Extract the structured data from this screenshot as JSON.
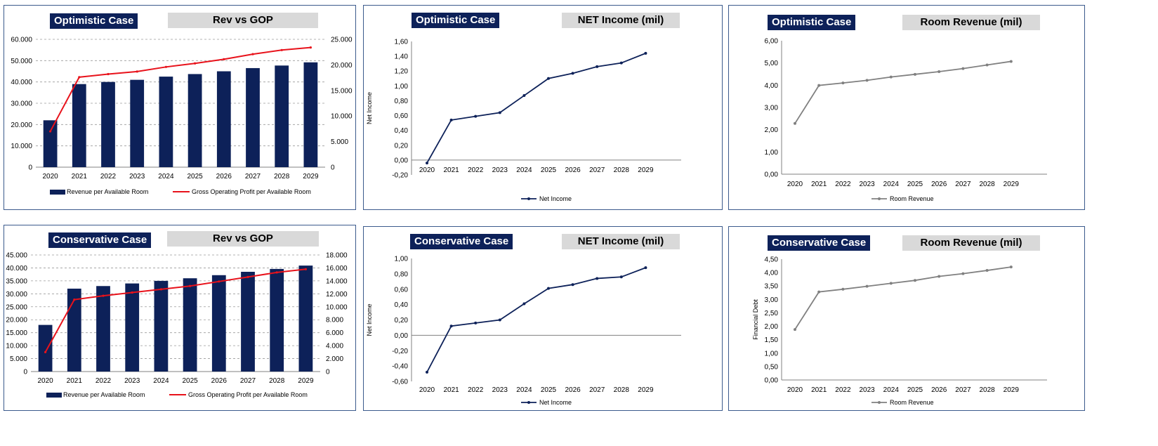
{
  "colors": {
    "navy": "#0d2159",
    "red": "#e8121b",
    "gray_line": "#808080",
    "title_bg": "#d9d9d9"
  },
  "panels": [
    {
      "id": "opt-rev-gop",
      "case_title": "Optimistic Case",
      "chart_title": "Rev vs GOP",
      "chart_data": {
        "type": "bar",
        "categories": [
          "2020",
          "2021",
          "2022",
          "2023",
          "2024",
          "2025",
          "2026",
          "2027",
          "2028",
          "2029"
        ],
        "series": [
          {
            "name": "Revenue per Available Room",
            "kind": "bar",
            "axis": "left",
            "values": [
              22000,
              39000,
              40000,
              41000,
              42500,
              43700,
              45000,
              46500,
              47700,
              49200
            ]
          },
          {
            "name": "Gross Operating Profit per Available Room",
            "kind": "line",
            "axis": "right",
            "values": [
              7000,
              17600,
              18200,
              18700,
              19600,
              20300,
              21100,
              22100,
              22900,
              23400
            ]
          }
        ],
        "left_axis": {
          "ylim": [
            0,
            60000
          ],
          "ticks": [
            "0",
            "10.000",
            "20.000",
            "30.000",
            "40.000",
            "50.000",
            "60.000"
          ]
        },
        "right_axis": {
          "ylim": [
            0,
            25000
          ],
          "ticks": [
            "0",
            "5.000",
            "10.000",
            "15.000",
            "20.000",
            "25.000"
          ]
        },
        "grid": true,
        "legend": "bottom"
      }
    },
    {
      "id": "opt-net-income",
      "case_title": "Optimistic Case",
      "chart_title": "NET Income (mil)",
      "chart_data": {
        "type": "line",
        "categories": [
          "2020",
          "2021",
          "2022",
          "2023",
          "2024",
          "2025",
          "2026",
          "2027",
          "2028",
          "2029"
        ],
        "series": [
          {
            "name": "Net Income",
            "values": [
              -0.04,
              0.54,
              0.59,
              0.64,
              0.87,
              1.1,
              1.17,
              1.26,
              1.31,
              1.44
            ]
          }
        ],
        "ylabel": "Net Income",
        "ylim": [
          -0.2,
          1.6
        ],
        "ticks": [
          "-0,20",
          "0,00",
          "0,20",
          "0,40",
          "0,60",
          "0,80",
          "1,00",
          "1,20",
          "1,40",
          "1,60"
        ],
        "grid": false,
        "legend": "bottom"
      }
    },
    {
      "id": "opt-room-revenue",
      "case_title": "Optimistic Case",
      "chart_title": "Room Revenue (mil)",
      "chart_data": {
        "type": "line",
        "categories": [
          "2020",
          "2021",
          "2022",
          "2023",
          "2024",
          "2025",
          "2026",
          "2027",
          "2028",
          "2029"
        ],
        "series": [
          {
            "name": "Room Revenue",
            "values": [
              2.28,
              3.99,
              4.1,
              4.22,
              4.37,
              4.49,
              4.61,
              4.75,
              4.91,
              5.07
            ]
          }
        ],
        "ylabel": "",
        "ylim": [
          0,
          6
        ],
        "ticks": [
          "0,00",
          "1,00",
          "2,00",
          "3,00",
          "4,00",
          "5,00",
          "6,00"
        ],
        "grid": false,
        "legend": "bottom"
      }
    },
    {
      "id": "cons-rev-gop",
      "case_title": "Conservative Case",
      "chart_title": "Rev vs GOP",
      "chart_data": {
        "type": "bar",
        "categories": [
          "2020",
          "2021",
          "2022",
          "2023",
          "2024",
          "2025",
          "2026",
          "2027",
          "2028",
          "2029"
        ],
        "series": [
          {
            "name": "Revenue per Available Room",
            "kind": "bar",
            "axis": "left",
            "values": [
              18000,
              32000,
              33000,
              34000,
              35000,
              36000,
              37200,
              38500,
              39600,
              40900
            ]
          },
          {
            "name": "Gross Operating Profit per Available Room",
            "kind": "line",
            "axis": "right",
            "values": [
              3000,
              11100,
              11700,
              12200,
              12700,
              13200,
              13900,
              14600,
              15300,
              15800
            ]
          }
        ],
        "left_axis": {
          "ylim": [
            0,
            45000
          ],
          "ticks": [
            "0",
            "5.000",
            "10.000",
            "15.000",
            "20.000",
            "25.000",
            "30.000",
            "35.000",
            "40.000",
            "45.000"
          ]
        },
        "right_axis": {
          "ylim": [
            0,
            18000
          ],
          "ticks": [
            "0",
            "2.000",
            "4.000",
            "6.000",
            "8.000",
            "10.000",
            "12.000",
            "14.000",
            "16.000",
            "18.000"
          ]
        },
        "grid": true,
        "legend": "bottom"
      }
    },
    {
      "id": "cons-net-income",
      "case_title": "Conservative Case",
      "chart_title": "NET Income (mil)",
      "chart_data": {
        "type": "line",
        "categories": [
          "2020",
          "2021",
          "2022",
          "2023",
          "2024",
          "2025",
          "2026",
          "2027",
          "2028",
          "2029"
        ],
        "series": [
          {
            "name": "Net Income",
            "values": [
              -0.48,
              0.12,
              0.16,
              0.2,
              0.41,
              0.61,
              0.66,
              0.74,
              0.76,
              0.88
            ]
          }
        ],
        "ylabel": "Net Income",
        "ylim": [
          -0.6,
          1.0
        ],
        "ticks": [
          "-0,60",
          "-0,40",
          "-0,20",
          "0,00",
          "0,20",
          "0,40",
          "0,60",
          "0,80",
          "1,00"
        ],
        "grid": false,
        "legend": "bottom"
      }
    },
    {
      "id": "cons-room-revenue",
      "case_title": "Conservative Case",
      "chart_title": "Room Revenue (mil)",
      "chart_data": {
        "type": "line",
        "categories": [
          "2020",
          "2021",
          "2022",
          "2023",
          "2024",
          "2025",
          "2026",
          "2027",
          "2028",
          "2029"
        ],
        "series": [
          {
            "name": "Room Revenue",
            "values": [
              1.88,
              3.28,
              3.38,
              3.49,
              3.6,
              3.71,
              3.86,
              3.96,
              4.08,
              4.21
            ]
          }
        ],
        "ylabel": "Financial Debt",
        "ylim": [
          0,
          4.5
        ],
        "ticks": [
          "0,00",
          "0,50",
          "1,00",
          "1,50",
          "2,00",
          "2,50",
          "3,00",
          "3,50",
          "4,00",
          "4,50"
        ],
        "grid": false,
        "legend": "bottom"
      }
    }
  ]
}
